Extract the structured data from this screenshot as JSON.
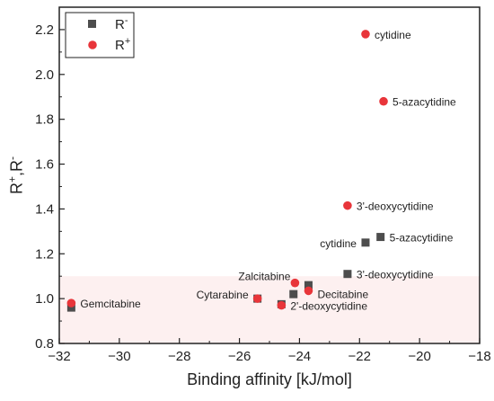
{
  "chart_data": {
    "type": "scatter",
    "xlabel": "Binding affinity [kJ/mol]",
    "ylabel": {
      "base1": "R",
      "sup1": "+",
      "sep": ",R",
      "sup2": "-"
    },
    "xlim": [
      -32,
      -18
    ],
    "ylim": [
      0.8,
      2.3
    ],
    "x_ticks": [
      -32,
      -30,
      -28,
      -26,
      -24,
      -22,
      -20,
      -18
    ],
    "y_ticks": [
      0.8,
      1.0,
      1.2,
      1.4,
      1.6,
      1.8,
      2.0,
      2.2
    ],
    "x_tick_labels": [
      "−32",
      "−30",
      "−28",
      "−26",
      "−24",
      "−22",
      "−20",
      "−18"
    ],
    "y_tick_labels": [
      "0.8",
      "1.0",
      "1.2",
      "1.4",
      "1.6",
      "1.8",
      "2.0",
      "2.2"
    ],
    "shaded_region": {
      "y_from": 0.8,
      "y_to": 1.1,
      "color": "#fdf0f0"
    },
    "legend": {
      "position": "top-left",
      "entries": [
        {
          "series": "R-",
          "base": "R",
          "sup": "-"
        },
        {
          "series": "R+",
          "base": "R",
          "sup": "+"
        }
      ]
    },
    "series": [
      {
        "name": "R-",
        "marker": "square",
        "color": "#4d4d4d",
        "points": [
          {
            "x": -31.6,
            "y": 0.96,
            "label": ""
          },
          {
            "x": -25.4,
            "y": 1.0,
            "label": ""
          },
          {
            "x": -24.6,
            "y": 0.975,
            "label": ""
          },
          {
            "x": -24.2,
            "y": 1.02,
            "label": ""
          },
          {
            "x": -23.7,
            "y": 1.06,
            "label": ""
          },
          {
            "x": -22.4,
            "y": 1.11,
            "label": "3'-deoxycytidine"
          },
          {
            "x": -21.8,
            "y": 1.25,
            "label": "cytidine"
          },
          {
            "x": -21.3,
            "y": 1.275,
            "label": "5-azacytidine"
          }
        ]
      },
      {
        "name": "R+",
        "marker": "circle",
        "color": "#e8353a",
        "points": [
          {
            "x": -31.6,
            "y": 0.98,
            "label": "Gemcitabine"
          },
          {
            "x": -25.4,
            "y": 1.0,
            "label": "Cytarabine"
          },
          {
            "x": -24.6,
            "y": 0.97,
            "label": "2'-deoxycytidine"
          },
          {
            "x": -24.15,
            "y": 1.07,
            "label": "Zalcitabine"
          },
          {
            "x": -23.7,
            "y": 1.035,
            "label": "Decitabine"
          },
          {
            "x": -22.4,
            "y": 1.415,
            "label": "3'-deoxycytidine"
          },
          {
            "x": -21.8,
            "y": 2.18,
            "label": "cytidine"
          },
          {
            "x": -21.2,
            "y": 1.88,
            "label": "5-azacytidine"
          }
        ]
      }
    ]
  }
}
